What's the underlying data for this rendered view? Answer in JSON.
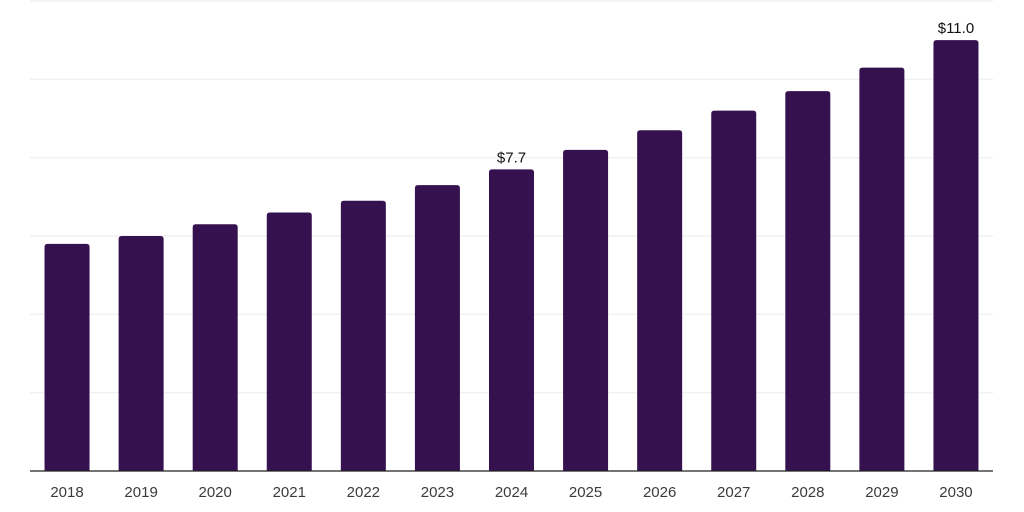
{
  "chart_data": {
    "type": "bar",
    "title": "",
    "xlabel": "",
    "ylabel": "",
    "categories": [
      "2018",
      "2019",
      "2020",
      "2021",
      "2022",
      "2023",
      "2024",
      "2025",
      "2026",
      "2027",
      "2028",
      "2029",
      "2030"
    ],
    "values": [
      5.8,
      6.0,
      6.3,
      6.6,
      6.9,
      7.3,
      7.7,
      8.2,
      8.7,
      9.2,
      9.7,
      10.3,
      11.0
    ],
    "data_labels": [
      "",
      "",
      "",
      "",
      "",
      "",
      "$7.7",
      "",
      "",
      "",
      "",
      "",
      "$11.0"
    ],
    "ylim": [
      0,
      12
    ],
    "grid_step": 2,
    "grid": true,
    "y_axis_labels_visible": false,
    "legend_position": "none",
    "colors": {
      "bar": "#36114F",
      "grid_line": "#f0f0f0",
      "axis_line": "#222222",
      "tick_label": "#3b3b3b",
      "data_label": "#111111",
      "background": "#ffffff"
    }
  }
}
